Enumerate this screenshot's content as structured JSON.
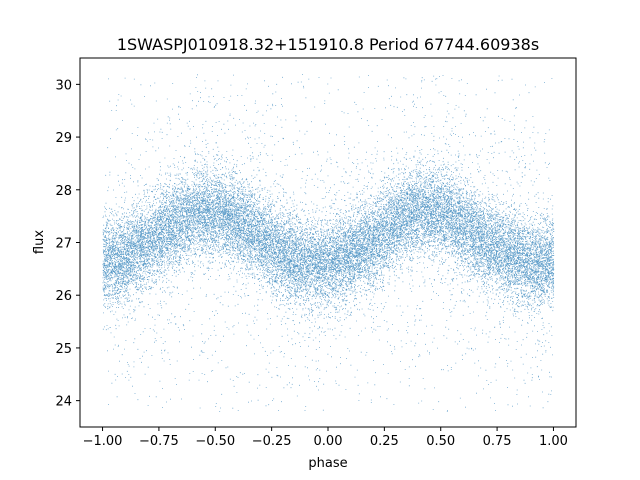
{
  "chart_data": {
    "type": "scatter",
    "title": "1SWASPJ010918.32+151910.8 Period 67744.60938s",
    "xlabel": "phase",
    "ylabel": "flux",
    "xlim": [
      -1.1,
      1.1
    ],
    "ylim": [
      23.5,
      30.5
    ],
    "x_ticks": [
      -1.0,
      -0.75,
      -0.5,
      -0.25,
      0.0,
      0.25,
      0.5,
      0.75,
      1.0
    ],
    "x_tick_labels": [
      "−1.00",
      "−0.75",
      "−0.50",
      "−0.25",
      "0.00",
      "0.25",
      "0.50",
      "0.75",
      "1.00"
    ],
    "y_ticks": [
      24,
      25,
      26,
      27,
      28,
      29,
      30
    ],
    "y_tick_labels": [
      "24",
      "25",
      "26",
      "27",
      "28",
      "29",
      "30"
    ],
    "grid": false,
    "marker_color": "#1f77b4",
    "series": [
      {
        "x": [
          -1.0,
          -0.9,
          -0.8,
          -0.7,
          -0.6,
          -0.5,
          -0.4,
          -0.3,
          -0.2,
          -0.1,
          0.0,
          0.1,
          0.2,
          0.3,
          0.4,
          0.5,
          0.6,
          0.7,
          0.8,
          0.9,
          1.0
        ],
        "values": [
          26.6,
          26.7,
          27.0,
          27.3,
          27.5,
          27.6,
          27.4,
          27.1,
          26.8,
          26.6,
          26.6,
          26.8,
          27.0,
          27.4,
          27.6,
          27.6,
          27.3,
          27.0,
          26.8,
          26.6,
          26.6
        ]
      }
    ],
    "band_spread": 0.55,
    "x_range": [
      -1.0,
      1.0
    ],
    "y_range": [
      23.8,
      30.2
    ]
  }
}
